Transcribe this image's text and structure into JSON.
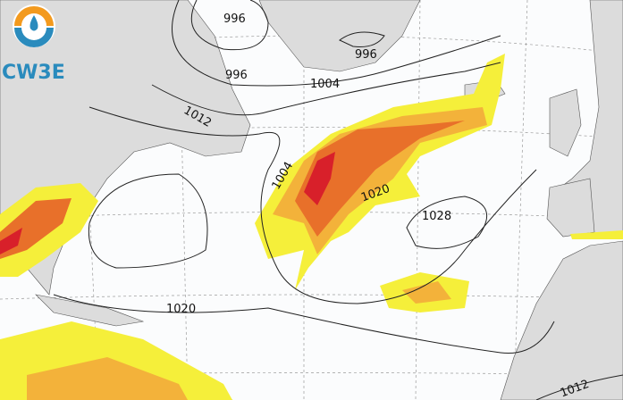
{
  "logo": {
    "text": "CW3E",
    "colors": {
      "orange": "#f39a1e",
      "blue": "#2a8bbd"
    }
  },
  "map": {
    "colors": {
      "ocean": "#ffffff",
      "land": "#dcdcdc",
      "ivt_low": "#f5ef3a",
      "ivt_mid": "#f3b23a",
      "ivt_high": "#e8702a",
      "ivt_max": "#d8202a",
      "contour": "#222222"
    },
    "contour_labels": [
      "996",
      "996",
      "996",
      "1004",
      "1012",
      "1004",
      "1020",
      "1028",
      "1020",
      "1012"
    ]
  }
}
